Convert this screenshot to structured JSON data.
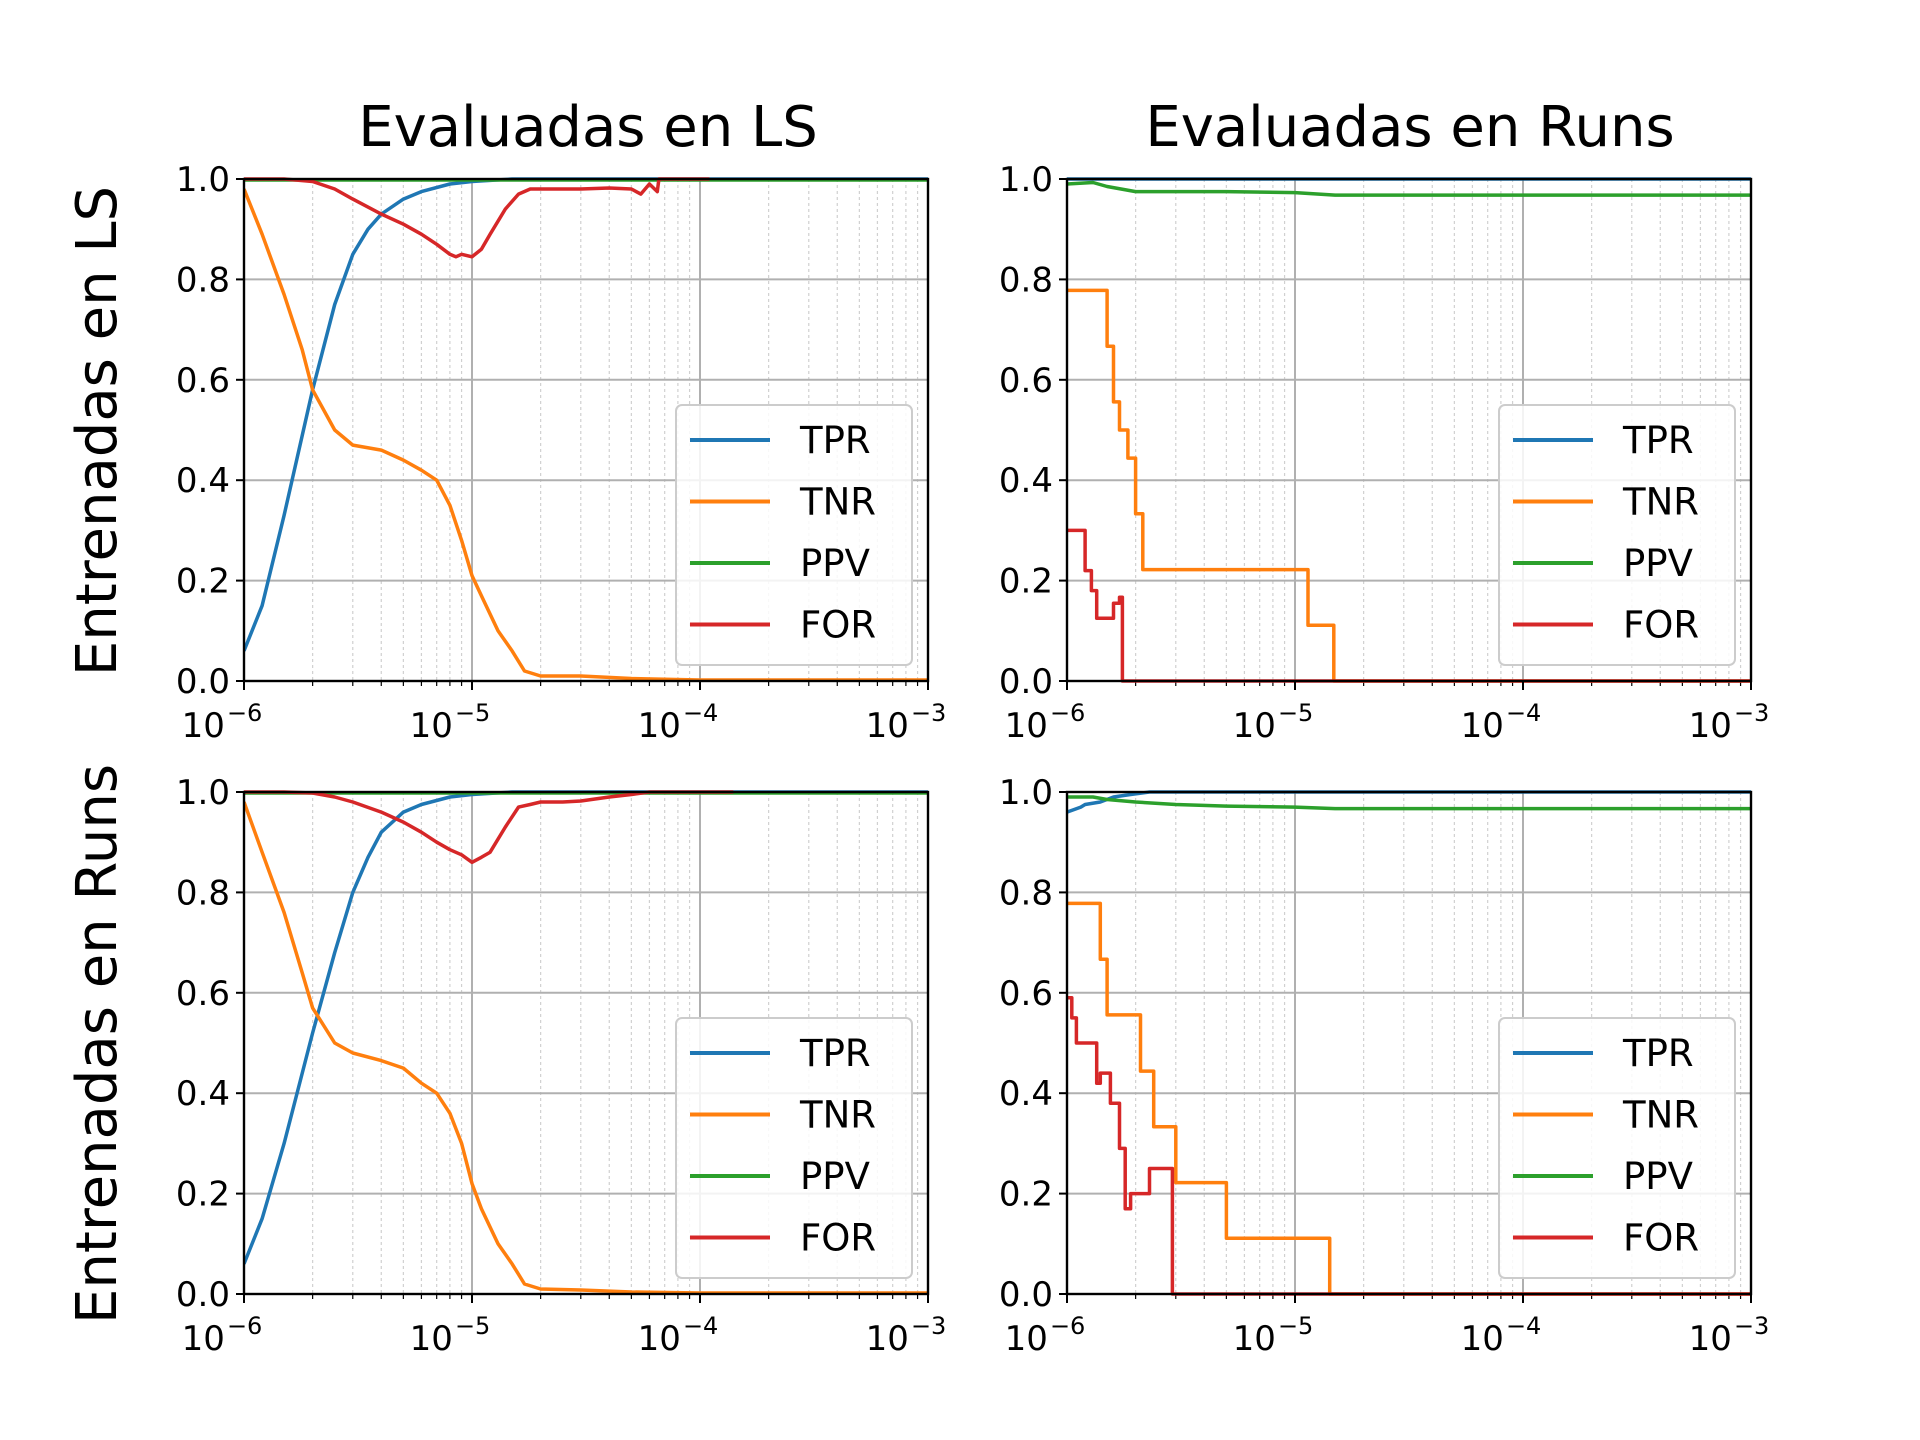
{
  "figure": {
    "col_titles": [
      "Evaluadas en LS",
      "Evaluadas en Runs"
    ],
    "row_titles": [
      "Entrenadas en LS",
      "Entrenadas en Runs"
    ],
    "colors": {
      "TPR": "#1f77b4",
      "TNR": "#ff7f0e",
      "PPV": "#2ca02c",
      "FOR": "#d62728"
    },
    "legend_labels": [
      "TPR",
      "TNR",
      "PPV",
      "FOR"
    ],
    "ytick_labels": [
      "0.0",
      "0.2",
      "0.4",
      "0.6",
      "0.8",
      "1.0"
    ],
    "xtick_mantissa": "10",
    "xtick_exponents": [
      "−6",
      "−5",
      "−4",
      "−3"
    ]
  },
  "chart_data": [
    {
      "type": "line",
      "title": "Evaluadas en LS",
      "row_label": "Entrenadas en LS",
      "xscale": "log",
      "xlim": [
        1e-06,
        0.001
      ],
      "ylim": [
        0,
        1
      ],
      "grid": true,
      "legend": "lower right",
      "series": [
        {
          "name": "TPR",
          "x": [
            1e-06,
            1.2e-06,
            1.5e-06,
            2e-06,
            2.5e-06,
            3e-06,
            3.5e-06,
            4e-06,
            5e-06,
            6e-06,
            8e-06,
            1e-05,
            1.5e-05,
            2e-05,
            0.001
          ],
          "y": [
            0.06,
            0.15,
            0.33,
            0.58,
            0.75,
            0.85,
            0.9,
            0.93,
            0.96,
            0.975,
            0.99,
            0.995,
            1.0,
            1.0,
            1.0
          ]
        },
        {
          "name": "TNR",
          "x": [
            1e-06,
            1.2e-06,
            1.5e-06,
            1.8e-06,
            2e-06,
            2.5e-06,
            3e-06,
            4e-06,
            5e-06,
            6e-06,
            7e-06,
            8e-06,
            9e-06,
            1e-05,
            1.1e-05,
            1.3e-05,
            1.5e-05,
            1.7e-05,
            2e-05,
            3e-05,
            5e-05,
            0.0001,
            0.001
          ],
          "y": [
            0.98,
            0.89,
            0.77,
            0.66,
            0.58,
            0.5,
            0.47,
            0.46,
            0.44,
            0.42,
            0.4,
            0.35,
            0.28,
            0.21,
            0.17,
            0.1,
            0.06,
            0.02,
            0.01,
            0.01,
            0.005,
            0.002,
            0.002
          ]
        },
        {
          "name": "PPV",
          "x": [
            1e-06,
            0.001
          ],
          "y": [
            0.998,
            0.998
          ]
        },
        {
          "name": "FOR",
          "x": [
            1e-06,
            1.5e-06,
            2e-06,
            2.5e-06,
            3e-06,
            4e-06,
            5e-06,
            6e-06,
            7e-06,
            8e-06,
            8.5e-06,
            9e-06,
            1e-05,
            1.1e-05,
            1.2e-05,
            1.4e-05,
            1.6e-05,
            1.8e-05,
            2e-05,
            3e-05,
            4e-05,
            5e-05,
            5.5e-05,
            6e-05,
            6.5e-05,
            6.6e-05,
            8e-05,
            0.00011
          ],
          "y": [
            1.0,
            1.0,
            0.995,
            0.98,
            0.96,
            0.93,
            0.91,
            0.89,
            0.87,
            0.85,
            0.845,
            0.85,
            0.845,
            0.86,
            0.89,
            0.94,
            0.97,
            0.98,
            0.98,
            0.98,
            0.982,
            0.98,
            0.97,
            0.99,
            0.975,
            1.0,
            1.0,
            1.0
          ]
        }
      ]
    },
    {
      "type": "line",
      "title": "Evaluadas en Runs",
      "row_label": "Entrenadas en LS",
      "xscale": "log",
      "xlim": [
        1e-06,
        0.001
      ],
      "ylim": [
        0,
        1
      ],
      "grid": true,
      "legend": "lower right",
      "series": [
        {
          "name": "TPR",
          "x": [
            1e-06,
            0.001
          ],
          "y": [
            1.0,
            1.0
          ]
        },
        {
          "name": "TNR",
          "step": true,
          "x": [
            1e-06,
            1.2e-06,
            1.5e-06,
            1.6e-06,
            1.7e-06,
            1.85e-06,
            2e-06,
            2.15e-06,
            1.14e-05,
            1.28e-05,
            1.48e-05,
            0.001
          ],
          "y": [
            0.778,
            0.778,
            0.667,
            0.556,
            0.5,
            0.444,
            0.333,
            0.222,
            0.111,
            0.111,
            0.0,
            0.0
          ]
        },
        {
          "name": "PPV",
          "x": [
            1e-06,
            1.3e-06,
            1.5e-06,
            2e-06,
            5e-06,
            1e-05,
            1.5e-05,
            0.001
          ],
          "y": [
            0.99,
            0.993,
            0.985,
            0.975,
            0.975,
            0.973,
            0.968,
            0.968
          ]
        },
        {
          "name": "FOR",
          "step": true,
          "x": [
            1e-06,
            1.2e-06,
            1.28e-06,
            1.35e-06,
            1.6e-06,
            1.7e-06,
            1.75e-06,
            1.77e-06,
            0.001
          ],
          "y": [
            0.3,
            0.22,
            0.18,
            0.125,
            0.155,
            0.167,
            0.0,
            0.0,
            0.0
          ]
        }
      ]
    },
    {
      "type": "line",
      "title": "Evaluadas en LS",
      "row_label": "Entrenadas en Runs",
      "xscale": "log",
      "xlim": [
        1e-06,
        0.001
      ],
      "ylim": [
        0,
        1
      ],
      "grid": true,
      "legend": "lower right",
      "series": [
        {
          "name": "TPR",
          "x": [
            1e-06,
            1.2e-06,
            1.5e-06,
            2e-06,
            2.5e-06,
            3e-06,
            3.5e-06,
            4e-06,
            5e-06,
            6e-06,
            8e-06,
            1e-05,
            1.5e-05,
            2e-05,
            0.001
          ],
          "y": [
            0.06,
            0.15,
            0.3,
            0.52,
            0.68,
            0.8,
            0.87,
            0.92,
            0.96,
            0.975,
            0.99,
            0.995,
            1.0,
            1.0,
            1.0
          ]
        },
        {
          "name": "TNR",
          "x": [
            1e-06,
            1.2e-06,
            1.5e-06,
            1.8e-06,
            2e-06,
            2.5e-06,
            3e-06,
            4e-06,
            5e-06,
            6e-06,
            7e-06,
            8e-06,
            9e-06,
            1e-05,
            1.1e-05,
            1.3e-05,
            1.5e-05,
            1.7e-05,
            2e-05,
            3e-05,
            5e-05,
            0.0001,
            0.001
          ],
          "y": [
            0.98,
            0.88,
            0.76,
            0.64,
            0.57,
            0.5,
            0.48,
            0.465,
            0.45,
            0.42,
            0.4,
            0.36,
            0.3,
            0.22,
            0.17,
            0.1,
            0.06,
            0.02,
            0.01,
            0.008,
            0.004,
            0.002,
            0.002
          ]
        },
        {
          "name": "PPV",
          "x": [
            1e-06,
            0.001
          ],
          "y": [
            0.998,
            0.998
          ]
        },
        {
          "name": "FOR",
          "x": [
            1e-06,
            1.5e-06,
            2e-06,
            2.5e-06,
            3e-06,
            4e-06,
            5e-06,
            6e-06,
            7e-06,
            8e-06,
            9e-06,
            1e-05,
            1.1e-05,
            1.2e-05,
            1.4e-05,
            1.6e-05,
            1.8e-05,
            2e-05,
            2.5e-05,
            3e-05,
            4e-05,
            5e-05,
            6e-05,
            8e-05,
            0.00014
          ],
          "y": [
            1.0,
            1.0,
            0.998,
            0.99,
            0.98,
            0.96,
            0.94,
            0.92,
            0.9,
            0.885,
            0.875,
            0.86,
            0.87,
            0.88,
            0.93,
            0.97,
            0.975,
            0.98,
            0.98,
            0.982,
            0.99,
            0.995,
            1.0,
            1.0,
            1.0
          ]
        }
      ]
    },
    {
      "type": "line",
      "title": "Evaluadas en Runs",
      "row_label": "Entrenadas en Runs",
      "xscale": "log",
      "xlim": [
        1e-06,
        0.001
      ],
      "ylim": [
        0,
        1
      ],
      "grid": true,
      "legend": "lower right",
      "series": [
        {
          "name": "TPR",
          "x": [
            1e-06,
            1.15e-06,
            1.2e-06,
            1.4e-06,
            1.6e-06,
            1.9e-06,
            2.3e-06,
            3e-06,
            0.001
          ],
          "y": [
            0.96,
            0.97,
            0.975,
            0.98,
            0.99,
            0.995,
            1.0,
            1.0,
            1.0
          ]
        },
        {
          "name": "PPV",
          "x": [
            1e-06,
            1.3e-06,
            1.5e-06,
            2e-06,
            3e-06,
            5e-06,
            1e-05,
            1.5e-05,
            0.001
          ],
          "y": [
            0.99,
            0.99,
            0.985,
            0.98,
            0.975,
            0.972,
            0.97,
            0.967,
            0.967
          ]
        },
        {
          "name": "TNR",
          "step": true,
          "x": [
            1e-06,
            1.2e-06,
            1.4e-06,
            1.5e-06,
            1.6e-06,
            2.1e-06,
            2.4e-06,
            3e-06,
            5e-06,
            1.2e-05,
            1.42e-05,
            0.001
          ],
          "y": [
            0.778,
            0.778,
            0.667,
            0.556,
            0.556,
            0.444,
            0.333,
            0.222,
            0.111,
            0.111,
            0.0,
            0.0
          ]
        },
        {
          "name": "FOR",
          "step": true,
          "x": [
            1e-06,
            1.05e-06,
            1.1e-06,
            1.2e-06,
            1.35e-06,
            1.4e-06,
            1.5e-06,
            1.55e-06,
            1.7e-06,
            1.8e-06,
            1.9e-06,
            2e-06,
            2.3e-06,
            2.5e-06,
            2.9e-06,
            3e-06,
            0.001
          ],
          "y": [
            0.59,
            0.55,
            0.5,
            0.5,
            0.42,
            0.44,
            0.44,
            0.38,
            0.29,
            0.17,
            0.2,
            0.2,
            0.25,
            0.25,
            0.0,
            0.0,
            0.0
          ]
        }
      ]
    }
  ]
}
